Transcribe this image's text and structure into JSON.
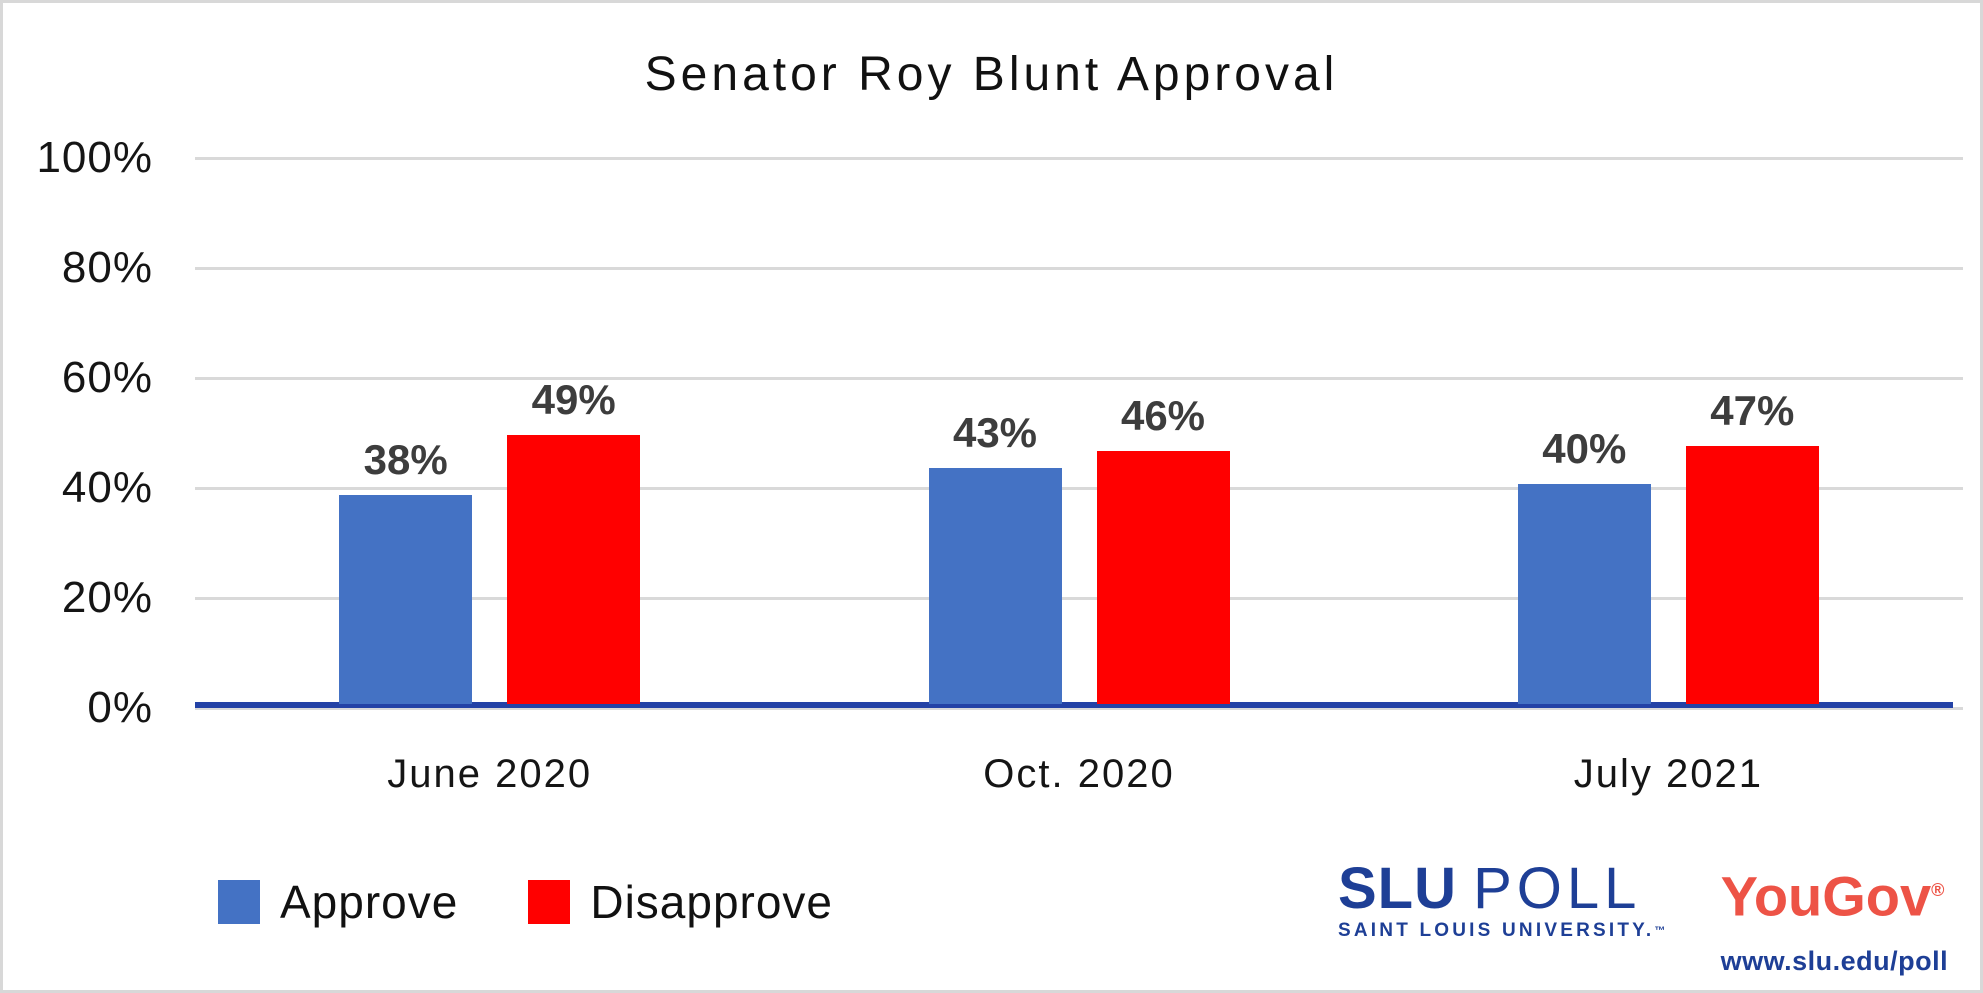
{
  "chart_data": {
    "type": "bar",
    "title": "Senator Roy Blunt Approval",
    "categories": [
      "June 2020",
      "Oct. 2020",
      "July 2021"
    ],
    "series": [
      {
        "name": "Approve",
        "color": "#4472C4",
        "values": [
          38,
          43,
          40
        ]
      },
      {
        "name": "Disapprove",
        "color": "#FF0000",
        "values": [
          49,
          46,
          47
        ]
      }
    ],
    "data_labels": [
      [
        "38%",
        "43%",
        "40%"
      ],
      [
        "49%",
        "46%",
        "47%"
      ]
    ],
    "value_suffix": "%",
    "y_axis": {
      "min": 0,
      "max": 100,
      "step": 20,
      "tick_labels": [
        "0%",
        "20%",
        "40%",
        "60%",
        "80%",
        "100%"
      ]
    },
    "grid": true,
    "gridline_color": "#d9d9d9",
    "axis_line_color": "#2342a6",
    "data_label_color": "#3d3d3d",
    "legend_position": "bottom-left",
    "legend": [
      "Approve",
      "Disapprove"
    ]
  },
  "branding": {
    "slu": "SLU",
    "poll": "POLL",
    "university": "SAINT LOUIS UNIVERSITY.",
    "university_tm": "™",
    "yougov": "YouGov",
    "registered": "®",
    "url": "www.slu.edu/poll",
    "slu_color": "#1e3f96",
    "yougov_color": "#ed5346"
  }
}
